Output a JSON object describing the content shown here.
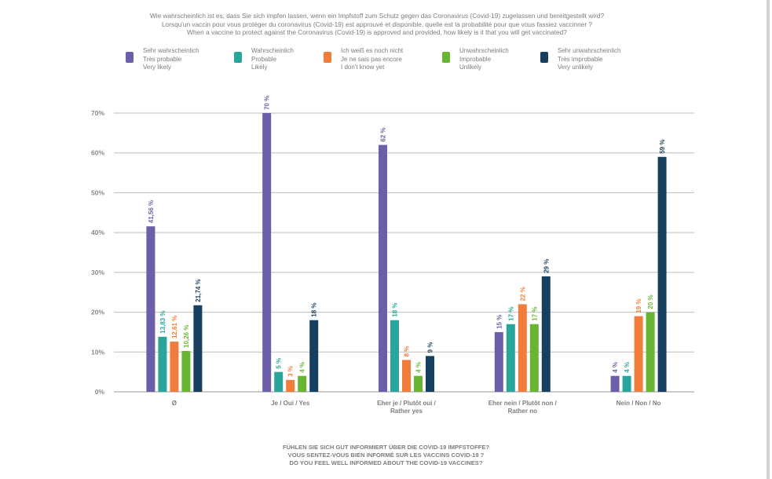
{
  "title_lines": [
    "Wie wahrscheinlich ist es, dass Sie sich impfen lassen, wenn ein Impfstoff zum Schutz gegen das Coronavirus (Covid-19) zugelassen und bereitgestellt wird?",
    "Lorsqu'un vaccin pour vous protéger du coronavirus (Covid-19) est approuvé et disponible, quelle est la probabilité pour que vous fassiez vaccinner ?",
    "When a vaccine to protect against the Coronavirus (Covid-19) is approved and provided, how likely is it that you will get vaccinated?"
  ],
  "legend": [
    {
      "lines": [
        "Sehr wahrscheinlich",
        "Très probable",
        "Very likely"
      ],
      "color": "#6a5fa8"
    },
    {
      "lines": [
        "Wahrscheinlich",
        "Probable",
        "Likely"
      ],
      "color": "#2aa59b"
    },
    {
      "lines": [
        "Ich weiß es noch nicht",
        "Je ne sais pas encore",
        "I don't know yet"
      ],
      "color": "#f07d3b"
    },
    {
      "lines": [
        "Unwahrscheinlich",
        "Improbable",
        "Unlikely"
      ],
      "color": "#67b531"
    },
    {
      "lines": [
        "Sehr unwahrscheinlich",
        "Très improbable",
        "Very unlikely"
      ],
      "color": "#173f5f"
    }
  ],
  "bottom_caption_lines": [
    "FÜHLEN SIE SICH GUT INFORMIERT ÜBER DIE COVID-19 IMPFSTOFFE?",
    "VOUS SENTEZ-VOUS BIEN INFORMÉ SUR LES VACCINS COVID-19 ?",
    "DO YOU FEEL WELL INFORMED ABOUT THE COVID-19 VACCINES?"
  ],
  "chart_data": {
    "type": "bar",
    "categories": [
      [
        "Ø"
      ],
      [
        "Je / Oui / Yes"
      ],
      [
        "Eher je / Plutôt oui /",
        "Rather yes"
      ],
      [
        "Eher nein / Plutôt non /",
        "Rather no"
      ],
      [
        "Nein / Non / No"
      ]
    ],
    "series": [
      {
        "name": "Sehr wahrscheinlich / Très probable / Very likely",
        "color": "#6a5fa8",
        "values": [
          41.56,
          70,
          62,
          15,
          4
        ],
        "labels": [
          "41,56 %",
          "70 %",
          "62 %",
          "15 %",
          "4 %"
        ]
      },
      {
        "name": "Wahrscheinlich / Probable / Likely",
        "color": "#2aa59b",
        "values": [
          13.83,
          5,
          18,
          17,
          4
        ],
        "labels": [
          "13,83 %",
          "5 %",
          "18 %",
          "17 %",
          "4 %"
        ]
      },
      {
        "name": "Ich weiß es noch nicht / Je ne sais pas encore / I don't know yet",
        "color": "#f07d3b",
        "values": [
          12.61,
          3,
          8,
          22,
          19
        ],
        "labels": [
          "12,61 %",
          "3 %",
          "8 %",
          "22 %",
          "19 %"
        ]
      },
      {
        "name": "Unwahrscheinlich / Improbable / Unlikely",
        "color": "#67b531",
        "values": [
          10.26,
          4,
          4,
          17,
          20
        ],
        "labels": [
          "10,26 %",
          "4 %",
          "4 %",
          "17 %",
          "20 %"
        ]
      },
      {
        "name": "Sehr unwahrscheinlich / Très improbable / Very unlikely",
        "color": "#173f5f",
        "values": [
          21.74,
          18,
          9,
          29,
          59
        ],
        "labels": [
          "21,74 %",
          "18 %",
          "9 %",
          "29 %",
          "59 %"
        ]
      }
    ],
    "ylim": [
      0,
      70
    ],
    "yticks": [
      0,
      10,
      20,
      30,
      40,
      50,
      60,
      70
    ],
    "ytick_labels": [
      "0%",
      "10%",
      "20%",
      "30%",
      "40%",
      "50%",
      "60%",
      "70%"
    ],
    "grid": true,
    "legend_position": "top"
  }
}
